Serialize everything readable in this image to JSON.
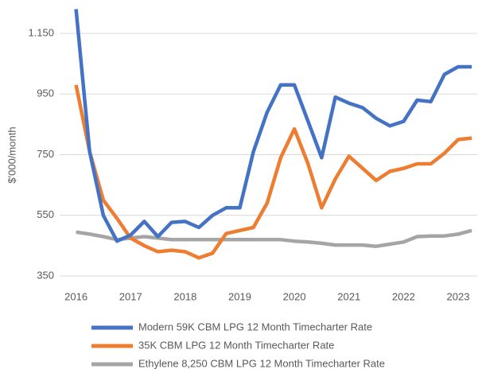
{
  "chart_data": {
    "type": "line",
    "y_label": "$'000/month",
    "x": [
      2016,
      2016.25,
      2016.5,
      2016.75,
      2017,
      2017.25,
      2017.5,
      2017.75,
      2018,
      2018.25,
      2018.5,
      2018.75,
      2019,
      2019.25,
      2019.5,
      2019.75,
      2020,
      2020.25,
      2020.5,
      2020.75,
      2021,
      2021.25,
      2021.5,
      2021.75,
      2022,
      2022.25,
      2022.5,
      2022.75,
      2023,
      2023.25
    ],
    "series": [
      {
        "name": "Modern 59K CBM LPG 12 Month Timecharter Rate",
        "color": "#4472c4",
        "values": [
          1230,
          760,
          550,
          465,
          485,
          530,
          480,
          527,
          530,
          510,
          550,
          575,
          575,
          760,
          890,
          980,
          980,
          860,
          740,
          940,
          920,
          905,
          870,
          845,
          860,
          930,
          925,
          1015,
          1040,
          1040
        ]
      },
      {
        "name": "35K CBM LPG 12 Month Timecharter Rate",
        "color": "#ed7d31",
        "values": [
          980,
          760,
          600,
          540,
          475,
          450,
          430,
          435,
          430,
          410,
          425,
          490,
          500,
          510,
          590,
          740,
          835,
          720,
          575,
          670,
          745,
          705,
          665,
          695,
          705,
          720,
          720,
          755,
          800,
          805
        ]
      },
      {
        "name": "Ethylene 8,250 CBM LPG 12 Month Timecharter Rate",
        "color": "#a5a5a5",
        "values": [
          495,
          488,
          480,
          470,
          475,
          480,
          475,
          470,
          470,
          470,
          470,
          470,
          470,
          470,
          470,
          470,
          465,
          462,
          458,
          452,
          452,
          452,
          448,
          455,
          462,
          480,
          482,
          482,
          488,
          500
        ]
      }
    ],
    "xlim": [
      2015.7,
      2023.35
    ],
    "xticks": [
      2016,
      2017,
      2018,
      2019,
      2020,
      2021,
      2022,
      2023
    ],
    "ylim": [
      316,
      1234
    ],
    "yticks": [
      350,
      550,
      750,
      950,
      {
        "value": 1150,
        "label": "1.150"
      }
    ],
    "grid": true,
    "legend": "bottom"
  }
}
